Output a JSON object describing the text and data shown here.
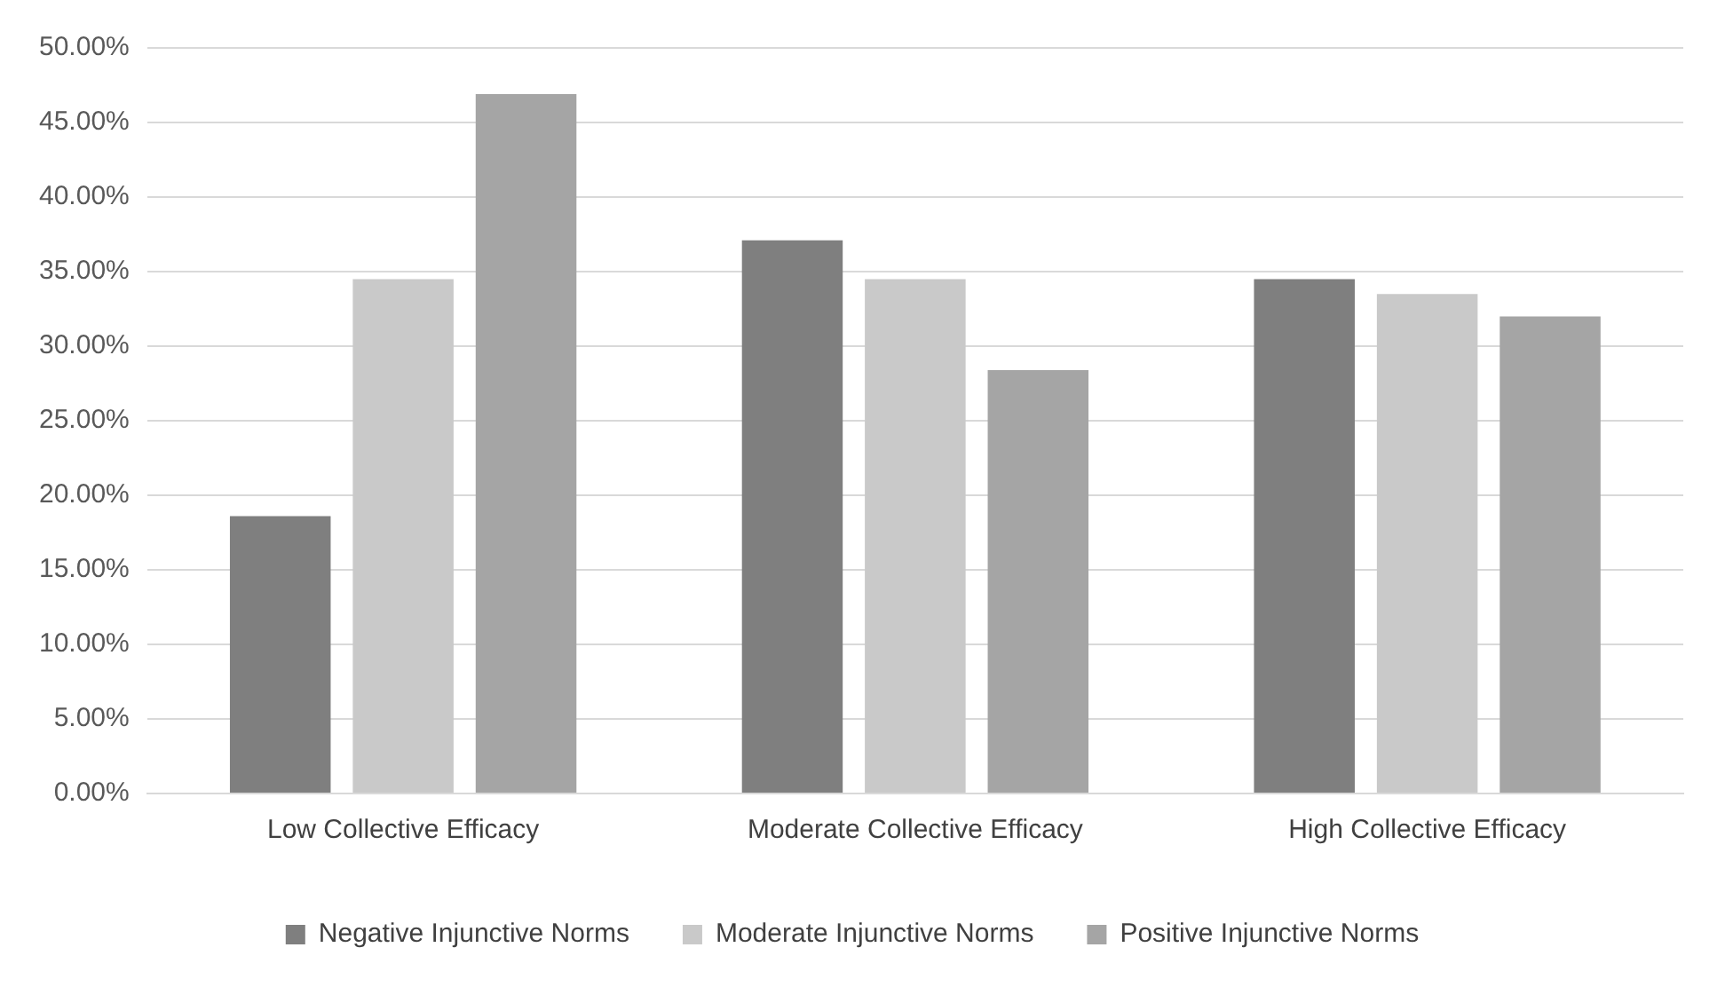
{
  "chart_data": {
    "type": "bar",
    "categories": [
      "Low Collective Efficacy",
      "Moderate Collective Efficacy",
      "High Collective Efficacy"
    ],
    "series": [
      {
        "name": "Negative Injunctive Norms",
        "color": "#7f7f7f",
        "values": [
          18.6,
          37.1,
          34.5
        ]
      },
      {
        "name": "Moderate Injunctive Norms",
        "color": "#c9c9c9",
        "values": [
          34.5,
          34.5,
          33.5
        ]
      },
      {
        "name": "Positive Injunctive Norms",
        "color": "#a5a5a5",
        "values": [
          46.9,
          28.4,
          32.0
        ]
      }
    ],
    "ylim": [
      0,
      50
    ],
    "yticks": [
      {
        "value": 0,
        "label": "0.00%"
      },
      {
        "value": 5,
        "label": "5.00%"
      },
      {
        "value": 10,
        "label": "10.00%"
      },
      {
        "value": 15,
        "label": "15.00%"
      },
      {
        "value": 20,
        "label": "20.00%"
      },
      {
        "value": 25,
        "label": "25.00%"
      },
      {
        "value": 30,
        "label": "30.00%"
      },
      {
        "value": 35,
        "label": "35.00%"
      },
      {
        "value": 40,
        "label": "40.00%"
      },
      {
        "value": 45,
        "label": "45.00%"
      },
      {
        "value": 50,
        "label": "50.00%"
      }
    ],
    "grid": "y",
    "legend": "bottom"
  }
}
